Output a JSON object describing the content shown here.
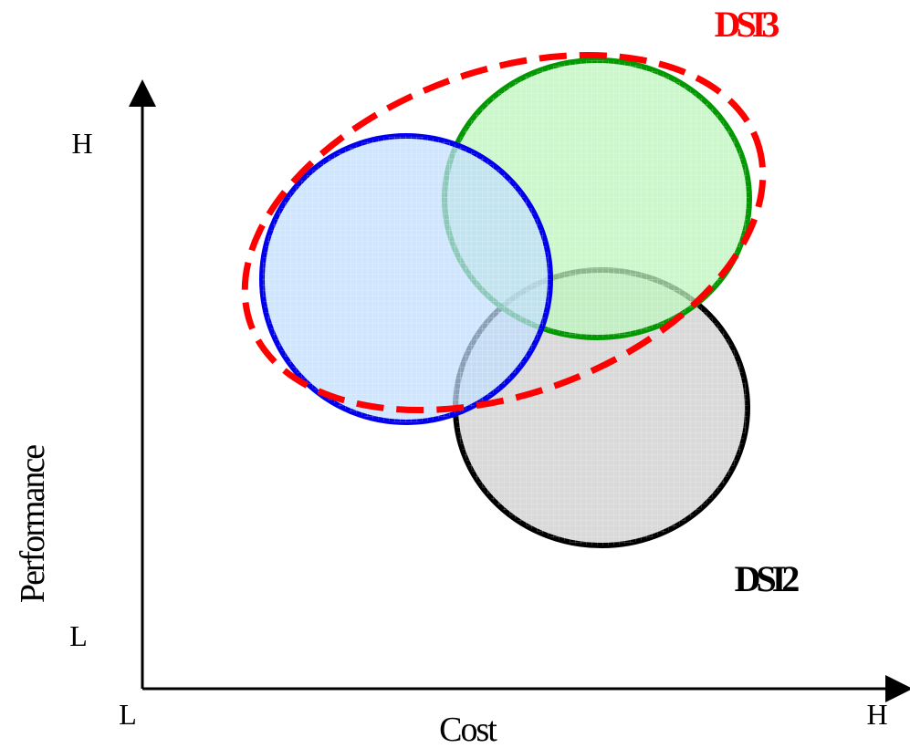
{
  "axes": {
    "x_label": "Cost",
    "y_label": "Performance",
    "x_low": "L",
    "x_high": "H",
    "y_low": "L",
    "y_high": "H",
    "color": "#000000"
  },
  "labels": {
    "dsi3": "DSI3",
    "dsi2": "DSI2"
  },
  "colors": {
    "blue_stroke": "#0000ee",
    "blue_fill": "#bcdcff",
    "green_stroke": "#009900",
    "green_fill": "#b8f5b8",
    "gray_stroke": "#000000",
    "gray_fill": "#d9d9d9",
    "dashed_stroke": "#ff0000",
    "dsi3_text": "#ff0000",
    "dsi2_text": "#000000"
  }
}
